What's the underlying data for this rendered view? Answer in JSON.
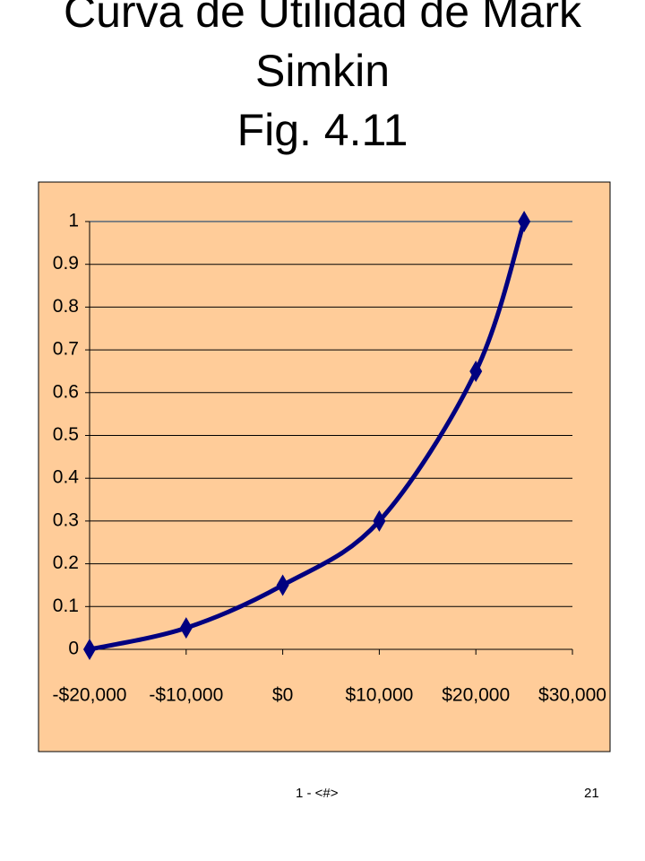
{
  "chart_data": {
    "type": "line",
    "title": "Curva de Utilidad de Mark Simkin",
    "subtitle": "Fig. 4.11",
    "x": [
      -20000,
      -10000,
      0,
      10000,
      20000,
      25000
    ],
    "series": [
      {
        "color": "#000080",
        "values": [
          0,
          0.05,
          0.15,
          0.3,
          0.65,
          1
        ]
      }
    ],
    "xlim": [
      -20000,
      30000
    ],
    "xticks": [
      {
        "value": -20000,
        "label": "-$20,000"
      },
      {
        "value": -10000,
        "label": "-$10,000"
      },
      {
        "value": 0,
        "label": "$0"
      },
      {
        "value": 10000,
        "label": "$10,000"
      },
      {
        "value": 20000,
        "label": "$20,000"
      },
      {
        "value": 30000,
        "label": "$30,000"
      }
    ],
    "ylim": [
      0,
      1
    ],
    "yticks": [
      0,
      0.1,
      0.2,
      0.3,
      0.4,
      0.5,
      0.6,
      0.7,
      0.8,
      0.9,
      1
    ],
    "grid": true,
    "background": "#FFCC99"
  },
  "footer": {
    "left": "1 - <#>",
    "right": "21"
  }
}
